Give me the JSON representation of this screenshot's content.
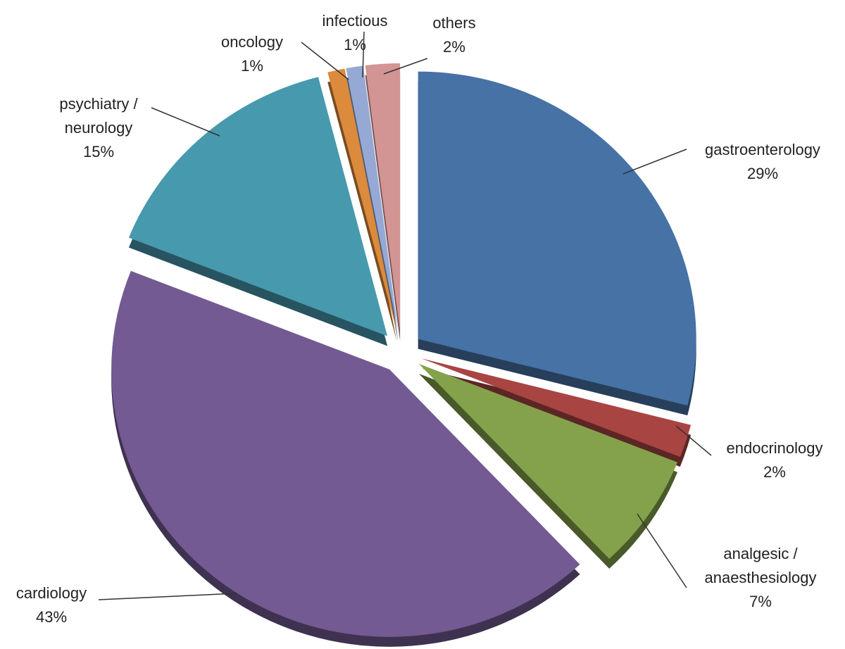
{
  "chart_data": {
    "type": "pie",
    "categories": [
      "gastroenterology",
      "endocrinology",
      "analgesic / anaesthesiology",
      "cardiology",
      "psychiatry / neurology",
      "oncology",
      "infectious",
      "others"
    ],
    "values": [
      29,
      2,
      7,
      43,
      15,
      1,
      1,
      2
    ],
    "value_labels": [
      "29%",
      "2%",
      "7%",
      "43%",
      "15%",
      "1%",
      "1%",
      "2%"
    ],
    "colors": [
      "#4672a5",
      "#a84543",
      "#84a24b",
      "#735a92",
      "#4799ae",
      "#dc8a3c",
      "#95a9d4",
      "#d39494"
    ]
  }
}
